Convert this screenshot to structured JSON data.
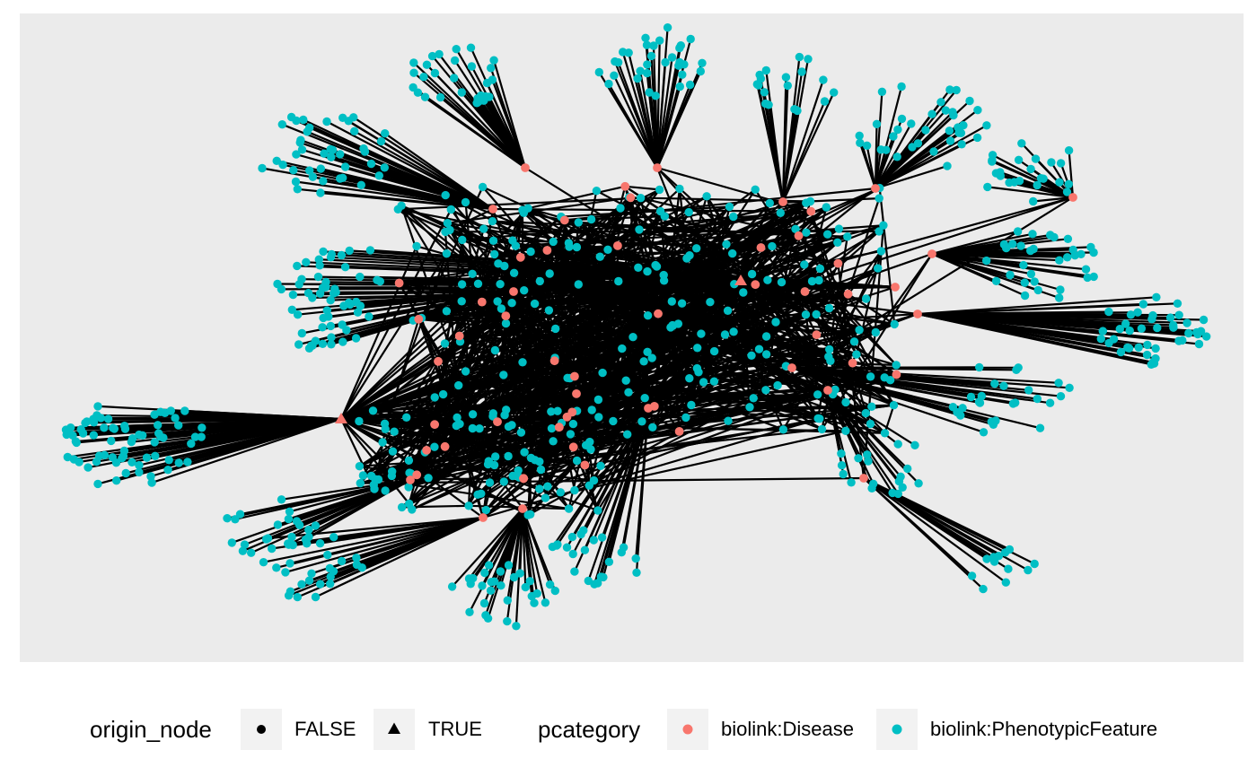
{
  "legend": {
    "origin_node": {
      "title": "origin_node",
      "entries": [
        {
          "label": "FALSE",
          "shape": "circle"
        },
        {
          "label": "TRUE",
          "shape": "triangle"
        }
      ]
    },
    "pcategory": {
      "title": "pcategory",
      "entries": [
        {
          "label": "biolink:Disease",
          "color": "#f8766d"
        },
        {
          "label": "biolink:PhenotypicFeature",
          "color": "#00bfc4"
        }
      ]
    }
  },
  "colors": {
    "panel_background": "#ebebeb",
    "edge": "#000000",
    "disease": "#f8766d",
    "phenotypic_feature": "#00bfc4"
  }
}
